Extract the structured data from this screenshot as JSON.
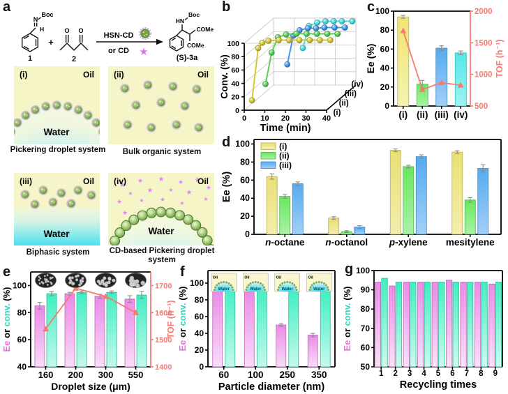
{
  "panel_a": {
    "letter": "a",
    "scheme": {
      "r1N": "N",
      "r1Boc": "Boc",
      "r1H": "H",
      "r1num": "1",
      "plus": "+",
      "o1": "O",
      "o2": "O",
      "r2num": "2",
      "cat1": "HSN-CD",
      "cat2": "or CD",
      "pHN": "HN",
      "pBoc": "Boc",
      "pCOMe1": "COMe",
      "pCOMe2": "COMe",
      "pnum": "(S)-3a"
    },
    "subpanels": [
      {
        "tag": "(i)",
        "oil": "Oil",
        "water": "Water",
        "caption": "Pickering droplet system"
      },
      {
        "tag": "(ii)",
        "oil": "Oil",
        "water": "",
        "caption": "Bulk organic system"
      },
      {
        "tag": "(iii)",
        "oil": "Oil",
        "water": "Water",
        "caption": "Biphasic system"
      },
      {
        "tag": "(iv)",
        "oil": "Oil",
        "water": "Water",
        "caption": "CD-based Pickering droplet system"
      }
    ]
  },
  "chart_data": [
    {
      "id": "b",
      "letter": "b",
      "type": "line3d",
      "xlabel": "Time (min)",
      "ylabel": "Conv. (%)",
      "x_ticks": [
        0,
        10,
        20,
        30,
        40
      ],
      "y_ticks": [
        0,
        20,
        40,
        60,
        80,
        100
      ],
      "xlim": [
        0,
        40
      ],
      "ylim": [
        0,
        100
      ],
      "rows": [
        "(i)",
        "(ii)",
        "(iii)",
        "(iv)"
      ],
      "series": [
        {
          "name": "(i)",
          "color": "#d6c832",
          "points": [
            [
              2,
              10
            ],
            [
              5,
              88
            ],
            [
              7,
              96
            ],
            [
              10,
              99
            ],
            [
              15,
              100
            ],
            [
              20,
              100
            ],
            [
              25,
              100
            ],
            [
              30,
              100
            ],
            [
              35,
              100
            ],
            [
              40,
              100
            ]
          ]
        },
        {
          "name": "(ii)",
          "color": "#58d058",
          "points": [
            [
              5,
              25
            ],
            [
              8,
              72
            ],
            [
              11,
              95
            ],
            [
              15,
              99
            ],
            [
              20,
              100
            ],
            [
              25,
              100
            ],
            [
              30,
              100
            ],
            [
              35,
              100
            ],
            [
              40,
              100
            ]
          ]
        },
        {
          "name": "(iii)",
          "color": "#4596e8",
          "points": [
            [
              12,
              45
            ],
            [
              15,
              88
            ],
            [
              18,
              96
            ],
            [
              22,
              99
            ],
            [
              26,
              99
            ],
            [
              30,
              100
            ],
            [
              35,
              100
            ],
            [
              40,
              100
            ]
          ]
        },
        {
          "name": "(iv)",
          "color": "#44dede",
          "points": [
            [
              16,
              60
            ],
            [
              19,
              93
            ],
            [
              23,
              98
            ],
            [
              27,
              100
            ],
            [
              31,
              100
            ],
            [
              35,
              100
            ],
            [
              40,
              100
            ]
          ]
        }
      ]
    },
    {
      "id": "c",
      "letter": "c",
      "type": "bar-line",
      "ylabel": "Ee (%)",
      "categories": [
        "(i)",
        "(ii)",
        "(iii)",
        "(iv)"
      ],
      "bars": {
        "values": [
          94,
          23,
          61,
          56
        ],
        "errors": [
          1.5,
          4,
          2.5,
          2
        ],
        "colors": [
          "#efe572",
          "#67e85f",
          "#55aaf0",
          "#52e8e8"
        ]
      },
      "line": {
        "label": "TOF (h⁻¹)",
        "values": [
          1690,
          760,
          870,
          830
        ],
        "color": "#f9796f"
      },
      "ylim": [
        0,
        100
      ],
      "y_ticks": [
        0,
        20,
        40,
        60,
        80,
        100
      ],
      "y2lim": [
        500,
        2000
      ],
      "y2_ticks": [
        500,
        1000,
        1500,
        2000
      ]
    },
    {
      "id": "d",
      "letter": "d",
      "type": "grouped-bar",
      "ylabel": "Ee (%)",
      "categories": [
        {
          "i": "n",
          "t": "-octane"
        },
        {
          "i": "n",
          "t": "-octanol"
        },
        {
          "i": "p",
          "t": "-xylene"
        },
        {
          "i": "",
          "t": "mesitylene"
        }
      ],
      "series": [
        {
          "name": "(i)",
          "color": "#e9e070",
          "values": [
            64,
            18,
            93,
            91
          ],
          "errors": [
            3,
            1.5,
            1.5,
            1.5
          ]
        },
        {
          "name": "(ii)",
          "color": "#67e85f",
          "values": [
            42,
            3,
            75,
            38
          ],
          "errors": [
            2,
            1,
            1.5,
            2.5
          ]
        },
        {
          "name": "(iii)",
          "color": "#55aaf0",
          "values": [
            56,
            8,
            86,
            73
          ],
          "errors": [
            2,
            1.5,
            2,
            4
          ]
        }
      ],
      "legend": true,
      "ylim": [
        0,
        105
      ],
      "y_ticks": [
        0,
        20,
        40,
        60,
        80,
        100
      ]
    },
    {
      "id": "e",
      "letter": "e",
      "type": "bar-line",
      "xlabel": "Droplet size (μm)",
      "ylabel_parts": [
        [
          "Ee",
          "#ee6be8"
        ],
        [
          " or ",
          "#000000"
        ],
        [
          "conv.",
          "#2bdcc0"
        ],
        [
          " (%)",
          "#000000"
        ]
      ],
      "categories": [
        "160",
        "200",
        "300",
        "550"
      ],
      "series": [
        {
          "name": "Ee",
          "color": "#ea8ae8",
          "values": [
            85,
            94,
            92,
            90
          ],
          "errors": [
            2.5,
            1,
            1.5,
            2.5
          ]
        },
        {
          "name": "conv.",
          "color": "#3feec2",
          "values": [
            94,
            95,
            95,
            93
          ],
          "errors": [
            1.5,
            1,
            1,
            2.5
          ]
        }
      ],
      "line": {
        "label": "TOF (h⁻¹)",
        "values": [
          1540,
          1690,
          1660,
          1600
        ],
        "color": "#f9796f"
      },
      "ylim": [
        40,
        110
      ],
      "y_ticks": [
        40,
        60,
        80,
        100
      ],
      "y2lim": [
        1400,
        1750
      ],
      "y2_ticks": [
        1400,
        1500,
        1600,
        1700
      ],
      "insets": "droplet micrographs"
    },
    {
      "id": "f",
      "letter": "f",
      "type": "grouped-bar",
      "xlabel": "Particle diameter (nm)",
      "ylabel_parts": [
        [
          "Ee",
          "#ee6be8"
        ],
        [
          " or ",
          "#000000"
        ],
        [
          "conv.",
          "#2bdcc0"
        ],
        [
          " (%)",
          "#000000"
        ]
      ],
      "categories": [
        "60",
        "100",
        "250",
        "350"
      ],
      "series": [
        {
          "name": "Ee",
          "color": "#ea8ae8",
          "values": [
            93,
            91,
            50,
            38
          ],
          "errors": [
            1.5,
            1,
            1.5,
            2
          ]
        },
        {
          "name": "conv.",
          "color": "#3feec2",
          "values": [
            96,
            96,
            93,
            93
          ],
          "errors": [
            1,
            1,
            2,
            1.5
          ]
        }
      ],
      "ylim": [
        0,
        115
      ],
      "y_ticks": [
        0,
        20,
        40,
        60,
        80,
        100
      ],
      "inset_labels": {
        "oil": "Oil",
        "water": "Water"
      }
    },
    {
      "id": "g",
      "letter": "g",
      "type": "grouped-bar",
      "xlabel": "Recycling times",
      "ylabel_parts": [
        [
          "Ee",
          "#ee6be8"
        ],
        [
          " or ",
          "#000000"
        ],
        [
          "conv.",
          "#2bdcc0"
        ],
        [
          " (%)",
          "#000000"
        ]
      ],
      "categories": [
        "1",
        "2",
        "3",
        "4",
        "5",
        "6",
        "7",
        "8",
        "9"
      ],
      "series": [
        {
          "name": "Ee",
          "color": "#ea8ae8",
          "values": [
            94,
            92,
            94,
            94,
            94,
            95,
            94,
            94,
            93
          ]
        },
        {
          "name": "conv.",
          "color": "#3feec2",
          "values": [
            96,
            94,
            94,
            94,
            94,
            94,
            94,
            94,
            94
          ]
        }
      ],
      "ylim": [
        50,
        100
      ],
      "y_ticks": [
        50,
        60,
        70,
        80,
        90,
        100
      ]
    }
  ]
}
